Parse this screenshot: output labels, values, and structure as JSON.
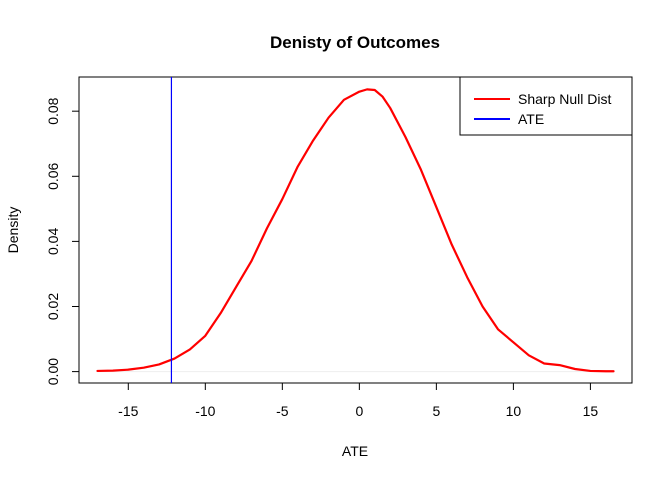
{
  "chart_data": {
    "type": "line",
    "title": "Denisty of Outcomes",
    "xlabel": "ATE",
    "ylabel": "Density",
    "xlim": [
      -18.2,
      17.7
    ],
    "ylim": [
      -0.0035,
      0.0905
    ],
    "x_ticks": [
      -15,
      -10,
      -5,
      0,
      5,
      10,
      15
    ],
    "y_ticks": [
      0.0,
      0.02,
      0.04,
      0.06,
      0.08
    ],
    "x_tick_labels": [
      "-15",
      "-10",
      "-5",
      "0",
      "5",
      "10",
      "15"
    ],
    "y_tick_labels": [
      "0.00",
      "0.02",
      "0.04",
      "0.06",
      "0.08"
    ],
    "grid": false,
    "legend_position": "top-right",
    "series": [
      {
        "name": "Sharp Null Dist",
        "color": "#ff0000",
        "x": [
          -17.0,
          -16.0,
          -15.0,
          -14.0,
          -13.0,
          -12.0,
          -11.0,
          -10.0,
          -9.0,
          -8.0,
          -7.0,
          -6.0,
          -5.0,
          -4.0,
          -3.0,
          -2.0,
          -1.0,
          0.0,
          0.5,
          1.0,
          1.5,
          2.0,
          3.0,
          4.0,
          5.0,
          6.0,
          7.0,
          8.0,
          9.0,
          10.0,
          11.0,
          12.0,
          13.0,
          14.0,
          15.0,
          16.0,
          16.5
        ],
        "y": [
          0.0002,
          0.0003,
          0.0006,
          0.0012,
          0.0022,
          0.004,
          0.0068,
          0.011,
          0.018,
          0.026,
          0.034,
          0.044,
          0.053,
          0.063,
          0.071,
          0.078,
          0.0835,
          0.086,
          0.0867,
          0.0865,
          0.0845,
          0.081,
          0.072,
          0.062,
          0.0505,
          0.039,
          0.029,
          0.02,
          0.013,
          0.009,
          0.005,
          0.0025,
          0.002,
          0.0008,
          0.0002,
          0.0001,
          0.0001
        ]
      },
      {
        "name": "ATE",
        "color": "#0000ff",
        "type": "vline",
        "x": -12.2
      }
    ]
  }
}
